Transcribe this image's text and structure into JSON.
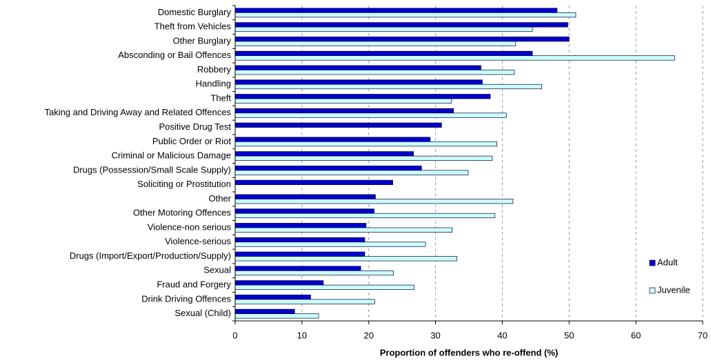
{
  "chart_data": {
    "type": "bar",
    "orientation": "horizontal",
    "xlabel": "Proportion of offenders who re-offend (%)",
    "categories": [
      "Domestic Burglary",
      "Theft from Vehicles",
      "Other Burglary",
      "Absconding or Bail Offences",
      "Robbery",
      "Handling",
      "Theft",
      "Taking and Driving Away and Related Offences",
      "Positive Drug Test",
      "Public Order or Riot",
      "Criminal or Malicious Damage",
      "Drugs (Possession/Small Scale Supply)",
      "Soliciting or Prostitution",
      "Other",
      "Other Motoring Offences",
      "Violence-non serious",
      "Violence-serious",
      "Drugs (Import/Export/Production/Supply)",
      "Sexual",
      "Fraud and Forgery",
      "Drink Driving Offences",
      "Sexual (Child)"
    ],
    "series": [
      {
        "name": "Adult",
        "color": "#0000cc",
        "values": [
          48.2,
          49.8,
          50,
          44.5,
          36.8,
          37,
          38.2,
          32.7,
          30.9,
          29.2,
          26.7,
          27.9,
          23.6,
          21,
          20.8,
          19.6,
          19.4,
          19.4,
          18.8,
          13.2,
          11.3,
          8.9
        ]
      },
      {
        "name": "Juvenile",
        "color": "#ccffff",
        "values": [
          51,
          44.5,
          42,
          65.8,
          41.8,
          45.9,
          32.4,
          40.6,
          null,
          39.2,
          38.5,
          34.9,
          null,
          41.6,
          38.9,
          32.5,
          28.5,
          33.2,
          23.7,
          26.8,
          20.9,
          12.5
        ]
      }
    ],
    "xlim": [
      0,
      70
    ],
    "xticks": [
      0,
      10,
      20,
      30,
      40,
      50,
      60,
      70
    ],
    "grid": true,
    "legend": "right"
  }
}
